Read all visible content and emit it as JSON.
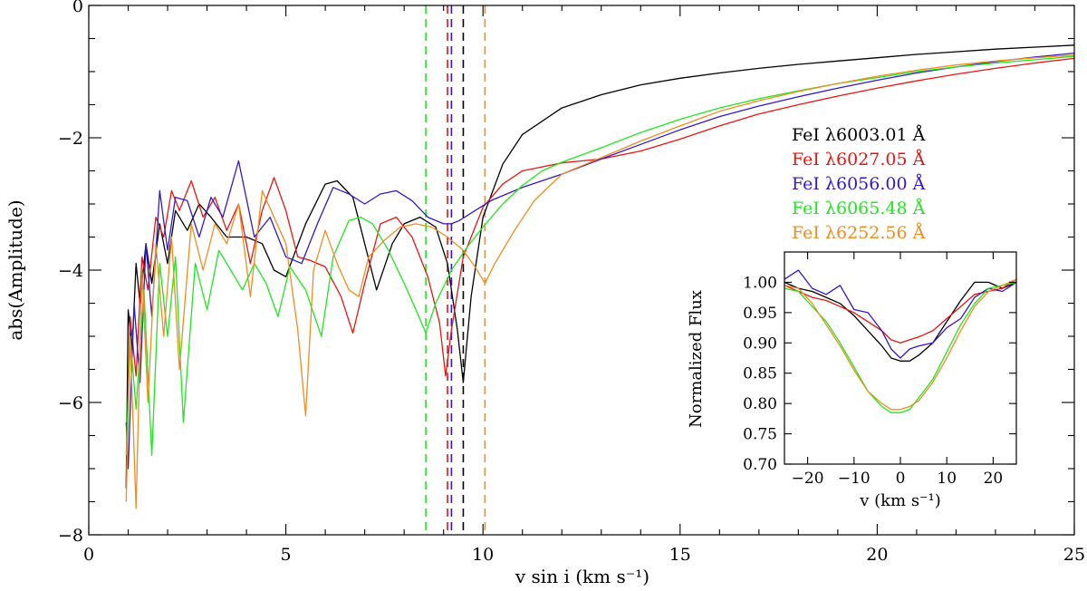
{
  "chart_data": [
    {
      "type": "line",
      "xlabel": "v sin i (km s⁻¹)",
      "ylabel": "abs(Amplitude)",
      "xlim": [
        0,
        25
      ],
      "ylim": [
        -8,
        0
      ],
      "xticks": [
        0,
        5,
        10,
        15,
        20,
        25
      ],
      "xtick_labels": [
        "0",
        "5",
        "10",
        "15",
        "20",
        "25"
      ],
      "yticks": [
        0,
        -2,
        -4,
        -6,
        -8
      ],
      "ytick_labels": [
        "0",
        "−2",
        "−4",
        "−6",
        "−8"
      ],
      "legend_placement": "right",
      "series": [
        {
          "name": "FeI λ6003.01 Å",
          "color": "#000000",
          "marker_x": 9.5,
          "x": [
            0.95,
            1.0,
            1.1,
            1.2,
            1.3,
            1.45,
            1.6,
            1.8,
            2.0,
            2.2,
            2.5,
            2.8,
            3.1,
            3.5,
            4.0,
            4.4,
            4.7,
            5.0,
            5.5,
            6.0,
            6.3,
            6.7,
            7.0,
            7.3,
            7.7,
            8.0,
            8.4,
            8.8,
            9.1,
            9.35,
            9.5,
            9.7,
            10.0,
            10.5,
            11.0,
            12.0,
            13.0,
            14.0,
            15.0,
            16.0,
            17.0,
            18.0,
            19.0,
            20.0,
            21.0,
            22.0,
            23.0,
            24.0,
            25.0
          ],
          "y": [
            -7.3,
            -4.6,
            -5.2,
            -3.9,
            -4.5,
            -3.6,
            -4.2,
            -3.3,
            -3.9,
            -3.1,
            -3.4,
            -3.0,
            -3.2,
            -3.5,
            -3.5,
            -3.6,
            -4.0,
            -4.1,
            -3.3,
            -2.7,
            -2.65,
            -2.9,
            -3.6,
            -4.3,
            -3.6,
            -3.3,
            -3.2,
            -3.35,
            -3.9,
            -4.9,
            -5.7,
            -4.4,
            -3.2,
            -2.4,
            -1.95,
            -1.55,
            -1.35,
            -1.2,
            -1.1,
            -1.02,
            -0.95,
            -0.89,
            -0.84,
            -0.79,
            -0.74,
            -0.7,
            -0.66,
            -0.63,
            -0.6
          ]
        },
        {
          "name": "FeI λ6027.05 Å",
          "color": "#e8150f",
          "marker_x": 9.1,
          "x": [
            0.95,
            1.05,
            1.2,
            1.35,
            1.5,
            1.7,
            1.9,
            2.1,
            2.3,
            2.6,
            2.9,
            3.2,
            3.5,
            3.8,
            4.1,
            4.4,
            4.7,
            5.0,
            5.3,
            5.6,
            6.0,
            6.4,
            6.7,
            7.0,
            7.4,
            7.8,
            8.2,
            8.6,
            8.9,
            9.05,
            9.2,
            9.5,
            10.0,
            10.5,
            11.0,
            12.0,
            13.0,
            14.0,
            15.0,
            16.0,
            17.0,
            18.0,
            19.0,
            20.0,
            21.0,
            22.0,
            23.0,
            24.0,
            25.0
          ],
          "y": [
            -7.2,
            -4.7,
            -5.6,
            -3.8,
            -4.3,
            -3.2,
            -3.5,
            -2.8,
            -3.1,
            -2.65,
            -3.2,
            -2.9,
            -3.4,
            -3.0,
            -3.9,
            -3.1,
            -2.6,
            -3.1,
            -3.8,
            -3.85,
            -3.95,
            -4.4,
            -4.95,
            -4.2,
            -3.3,
            -3.2,
            -3.5,
            -4.1,
            -4.8,
            -5.6,
            -4.9,
            -3.8,
            -3.05,
            -2.7,
            -2.5,
            -2.38,
            -2.32,
            -2.2,
            -2.02,
            -1.82,
            -1.64,
            -1.5,
            -1.37,
            -1.25,
            -1.14,
            -1.04,
            -0.95,
            -0.87,
            -0.8
          ]
        },
        {
          "name": "FeI λ6056.00 Å",
          "color": "#3318cc",
          "marker_x": 9.2,
          "x": [
            0.95,
            1.0,
            1.15,
            1.3,
            1.45,
            1.6,
            1.8,
            2.0,
            2.2,
            2.5,
            2.8,
            3.1,
            3.4,
            3.8,
            4.2,
            4.6,
            5.0,
            5.4,
            5.8,
            6.2,
            6.6,
            7.0,
            7.4,
            7.8,
            8.2,
            8.6,
            9.0,
            9.2,
            9.4,
            9.8,
            10.2,
            10.6,
            11.0,
            12.0,
            13.0,
            14.0,
            15.0,
            16.0,
            17.0,
            18.0,
            19.0,
            20.0,
            21.0,
            22.0,
            23.0,
            24.0,
            25.0
          ],
          "y": [
            -6.3,
            -7.0,
            -4.5,
            -5.7,
            -3.6,
            -4.7,
            -2.8,
            -3.7,
            -2.9,
            -2.95,
            -3.5,
            -2.9,
            -3.2,
            -2.35,
            -3.5,
            -3.2,
            -3.8,
            -3.9,
            -3.3,
            -2.75,
            -2.85,
            -3.0,
            -2.85,
            -2.8,
            -2.95,
            -3.2,
            -3.3,
            -3.3,
            -3.25,
            -3.1,
            -2.95,
            -2.85,
            -2.75,
            -2.55,
            -2.32,
            -2.1,
            -1.88,
            -1.68,
            -1.52,
            -1.38,
            -1.25,
            -1.13,
            -1.02,
            -0.93,
            -0.85,
            -0.78,
            -0.72
          ]
        },
        {
          "name": "FeI λ6065.48 Å",
          "color": "#1ee81e",
          "marker_x": 8.55,
          "x": [
            0.95,
            1.05,
            1.2,
            1.4,
            1.6,
            1.8,
            2.0,
            2.2,
            2.4,
            2.7,
            3.0,
            3.3,
            3.6,
            3.9,
            4.2,
            4.5,
            4.8,
            5.1,
            5.5,
            5.9,
            6.2,
            6.6,
            6.9,
            7.2,
            7.6,
            8.0,
            8.3,
            8.55,
            8.8,
            9.2,
            9.6,
            10.0,
            10.5,
            11.0,
            11.5,
            12.0,
            13.0,
            14.0,
            15.0,
            16.0,
            17.0,
            18.0,
            19.0,
            20.0,
            21.0,
            22.0,
            23.0,
            24.0,
            25.0
          ],
          "y": [
            -6.8,
            -5.0,
            -6.1,
            -4.3,
            -6.8,
            -3.9,
            -5.0,
            -3.8,
            -6.3,
            -3.9,
            -4.6,
            -3.7,
            -4.0,
            -4.3,
            -3.9,
            -4.2,
            -4.7,
            -3.95,
            -4.3,
            -5.0,
            -3.8,
            -3.25,
            -3.2,
            -3.3,
            -3.7,
            -4.2,
            -4.6,
            -4.95,
            -4.5,
            -4.0,
            -3.65,
            -3.35,
            -3.0,
            -2.72,
            -2.5,
            -2.37,
            -2.15,
            -1.92,
            -1.72,
            -1.55,
            -1.41,
            -1.29,
            -1.18,
            -1.09,
            -1.0,
            -0.93,
            -0.87,
            -0.82,
            -0.77
          ]
        },
        {
          "name": "FeI λ6252.56 Å",
          "color": "#f28c1e",
          "marker_x": 10.05,
          "x": [
            0.95,
            1.05,
            1.2,
            1.35,
            1.5,
            1.7,
            1.9,
            2.1,
            2.3,
            2.6,
            2.9,
            3.2,
            3.5,
            3.8,
            4.1,
            4.4,
            4.7,
            5.0,
            5.3,
            5.5,
            5.7,
            6.0,
            6.3,
            6.6,
            6.85,
            7.1,
            7.5,
            7.9,
            8.3,
            8.7,
            9.1,
            9.5,
            9.8,
            10.05,
            10.3,
            10.8,
            11.3,
            12.0,
            13.0,
            14.0,
            15.0,
            16.0,
            17.0,
            18.0,
            19.0,
            20.0,
            21.0,
            22.0,
            23.0,
            24.0,
            25.0
          ],
          "y": [
            -7.5,
            -5.0,
            -7.6,
            -4.0,
            -6.0,
            -3.6,
            -5.0,
            -3.5,
            -5.5,
            -3.3,
            -4.0,
            -3.3,
            -3.6,
            -3.0,
            -4.4,
            -2.8,
            -3.2,
            -3.6,
            -4.9,
            -6.2,
            -4.0,
            -3.4,
            -3.9,
            -4.3,
            -4.4,
            -3.8,
            -3.55,
            -3.35,
            -3.3,
            -3.35,
            -3.5,
            -3.7,
            -3.95,
            -4.2,
            -3.9,
            -3.4,
            -2.95,
            -2.55,
            -2.3,
            -2.05,
            -1.82,
            -1.6,
            -1.44,
            -1.3,
            -1.18,
            -1.07,
            -0.98,
            -0.9,
            -0.84,
            -0.79,
            -0.75
          ]
        }
      ]
    },
    {
      "type": "line",
      "xlabel": "v (km s⁻¹)",
      "ylabel": "Normalized Flux",
      "xlim": [
        -25,
        25
      ],
      "ylim": [
        0.7,
        1.05
      ],
      "xticks": [
        -20,
        -10,
        0,
        10,
        20
      ],
      "xtick_labels": [
        "−20",
        "−10",
        "0",
        "10",
        "20"
      ],
      "yticks": [
        0.7,
        0.75,
        0.8,
        0.85,
        0.9,
        0.95,
        1.0
      ],
      "ytick_labels": [
        "0.70",
        "0.75",
        "0.80",
        "0.85",
        "0.90",
        "0.95",
        "1.00"
      ],
      "series": [
        {
          "name": "FeI λ6003.01 Å",
          "color": "#000000",
          "x": [
            -25,
            -22,
            -19,
            -16,
            -13,
            -10,
            -7,
            -4,
            -2,
            0,
            2,
            4,
            7,
            10,
            13,
            16,
            19,
            22,
            25
          ],
          "y": [
            1.0,
            0.99,
            0.985,
            0.975,
            0.965,
            0.945,
            0.92,
            0.895,
            0.875,
            0.87,
            0.87,
            0.88,
            0.9,
            0.935,
            0.97,
            1.0,
            1.0,
            0.99,
            1.0
          ]
        },
        {
          "name": "FeI λ6027.05 Å",
          "color": "#e8150f",
          "x": [
            -25,
            -22,
            -19,
            -16,
            -13,
            -10,
            -7,
            -4,
            -2,
            0,
            2,
            4,
            7,
            10,
            13,
            16,
            19,
            22,
            25
          ],
          "y": [
            0.995,
            0.985,
            0.975,
            0.97,
            0.96,
            0.95,
            0.935,
            0.92,
            0.905,
            0.9,
            0.905,
            0.91,
            0.92,
            0.94,
            0.96,
            0.98,
            0.985,
            0.99,
            1.005
          ]
        },
        {
          "name": "FeI λ6056.00 Å",
          "color": "#3318cc",
          "x": [
            -25,
            -22,
            -19,
            -16,
            -13,
            -10,
            -7,
            -4,
            -2,
            0,
            2,
            4,
            7,
            10,
            13,
            16,
            19,
            22,
            25
          ],
          "y": [
            1.005,
            1.02,
            0.99,
            0.98,
            0.995,
            0.955,
            0.95,
            0.92,
            0.89,
            0.875,
            0.89,
            0.895,
            0.9,
            0.925,
            0.94,
            0.975,
            0.99,
            0.985,
            1.0
          ]
        },
        {
          "name": "FeI λ6065.48 Å",
          "color": "#1ee81e",
          "x": [
            -25,
            -22,
            -19,
            -16,
            -13,
            -10,
            -7,
            -4,
            -2,
            0,
            2,
            4,
            7,
            10,
            13,
            16,
            19,
            22,
            25
          ],
          "y": [
            0.99,
            0.985,
            0.96,
            0.935,
            0.9,
            0.86,
            0.82,
            0.795,
            0.785,
            0.785,
            0.79,
            0.81,
            0.84,
            0.885,
            0.93,
            0.965,
            0.99,
            0.995,
            1.0
          ]
        },
        {
          "name": "FeI λ6252.56 Å",
          "color": "#f28c1e",
          "x": [
            -25,
            -22,
            -19,
            -16,
            -13,
            -10,
            -7,
            -4,
            -2,
            0,
            2,
            4,
            7,
            10,
            13,
            16,
            19,
            22,
            25
          ],
          "y": [
            0.995,
            0.99,
            0.965,
            0.93,
            0.895,
            0.855,
            0.82,
            0.8,
            0.79,
            0.79,
            0.795,
            0.805,
            0.835,
            0.875,
            0.92,
            0.96,
            0.985,
            0.995,
            1.005
          ]
        }
      ]
    }
  ]
}
